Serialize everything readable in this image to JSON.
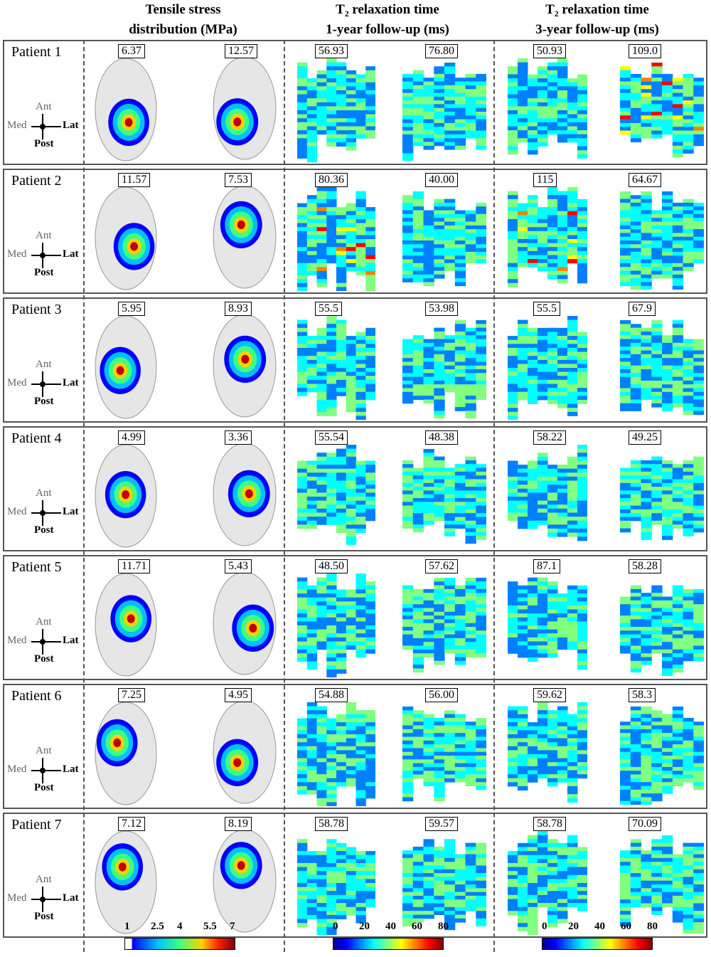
{
  "headers": {
    "stress_l1": "Tensile stress",
    "stress_l2": "distribution (MPa)",
    "t2a_l1": "T₂ relaxation time",
    "t2a_l2": "1-year follow-up (ms)",
    "t2b_l1": "T₂ relaxation time",
    "t2b_l2": "3-year follow-up (ms)"
  },
  "compass": {
    "ant": "Ant",
    "med": "Med",
    "lat": "Lat",
    "post": "Post"
  },
  "patients": [
    {
      "label": "Patient 1",
      "values": [
        "6.37",
        "12.57",
        "56.93",
        "76.80",
        "50.93",
        "109.0"
      ]
    },
    {
      "label": "Patient 2",
      "values": [
        "11.57",
        "7.53",
        "80.36",
        "40.00",
        "115",
        "64.67"
      ]
    },
    {
      "label": "Patient 3",
      "values": [
        "5.95",
        "8.93",
        "55.5",
        "53.98",
        "55.5",
        "67.9"
      ]
    },
    {
      "label": "Patient 4",
      "values": [
        "4.99",
        "3.36",
        "55.54",
        "48.38",
        "58.22",
        "49.25"
      ]
    },
    {
      "label": "Patient 5",
      "values": [
        "11.71",
        "5.43",
        "48.50",
        "57.62",
        "87.1",
        "58.28"
      ]
    },
    {
      "label": "Patient 6",
      "values": [
        "7.25",
        "4.95",
        "54.88",
        "56.00",
        "59.62",
        "58.3"
      ]
    },
    {
      "label": "Patient 7",
      "values": [
        "7.12",
        "8.19",
        "58.78",
        "59.57",
        "58.78",
        "70.09"
      ]
    }
  ],
  "colorbars": {
    "stress_ticks": [
      "1",
      "2.5",
      "4",
      "5.5",
      "7"
    ],
    "t2_ticks": [
      "0",
      "20",
      "40",
      "60",
      "80"
    ]
  },
  "colors": {
    "jet": [
      "#00008f",
      "#0000ff",
      "#0080ff",
      "#00ffff",
      "#80ff80",
      "#ffff00",
      "#ff8000",
      "#ff0000",
      "#800000"
    ],
    "surface": "#e6e6e6",
    "border": "#555555"
  }
}
